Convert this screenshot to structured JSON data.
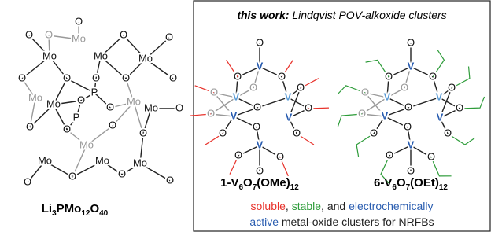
{
  "left": {
    "atoms": [
      "Mo",
      "Mo",
      "Mo",
      "Mo",
      "Mo",
      "Mo",
      "Mo",
      "Mo",
      "Mo",
      "Mo",
      "Mo",
      "Mo",
      "O",
      "O",
      "O",
      "O",
      "O",
      "O",
      "O",
      "O",
      "O",
      "O",
      "O",
      "O",
      "O",
      "O",
      "O",
      "O",
      "O",
      "O",
      "O",
      "O",
      "O",
      "P",
      "P"
    ],
    "formula": [
      "Li",
      "3",
      "PMo",
      "12",
      "O",
      "40"
    ]
  },
  "box": {
    "title": {
      "bold": "this work:",
      "rest": " Lindqvist POV-alkoxide clusters"
    },
    "clusters": [
      {
        "atoms": [
          "V",
          "V",
          "V",
          "V",
          "V",
          "V",
          "O",
          "O",
          "O",
          "O",
          "O",
          "O",
          "O",
          "O",
          "O",
          "O",
          "O",
          "O",
          "O",
          "O",
          "O"
        ],
        "label": [
          "1-V",
          "6",
          "O",
          "7",
          "(OMe)",
          "12"
        ]
      },
      {
        "atoms": [
          "V",
          "V",
          "V",
          "V",
          "V",
          "V",
          "O",
          "O",
          "O",
          "O",
          "O",
          "O",
          "O",
          "O",
          "O",
          "O",
          "O",
          "O",
          "O",
          "O",
          "O"
        ],
        "label": [
          "6-V",
          "6",
          "O",
          "7",
          "(OEt)",
          "12"
        ]
      }
    ],
    "caption": [
      [
        {
          "text": "soluble",
          "color": "#e8322b"
        },
        {
          "text": ", ",
          "color": "#222222"
        },
        {
          "text": "stable",
          "color": "#2e9c3a"
        },
        {
          "text": ", and ",
          "color": "#222222"
        },
        {
          "text": "electrochemically",
          "color": "#2a5db0"
        }
      ],
      [
        {
          "text": "active",
          "color": "#2a5db0"
        },
        {
          "text": " metal-oxide clusters for NRFBs",
          "color": "#222222"
        }
      ]
    ]
  }
}
